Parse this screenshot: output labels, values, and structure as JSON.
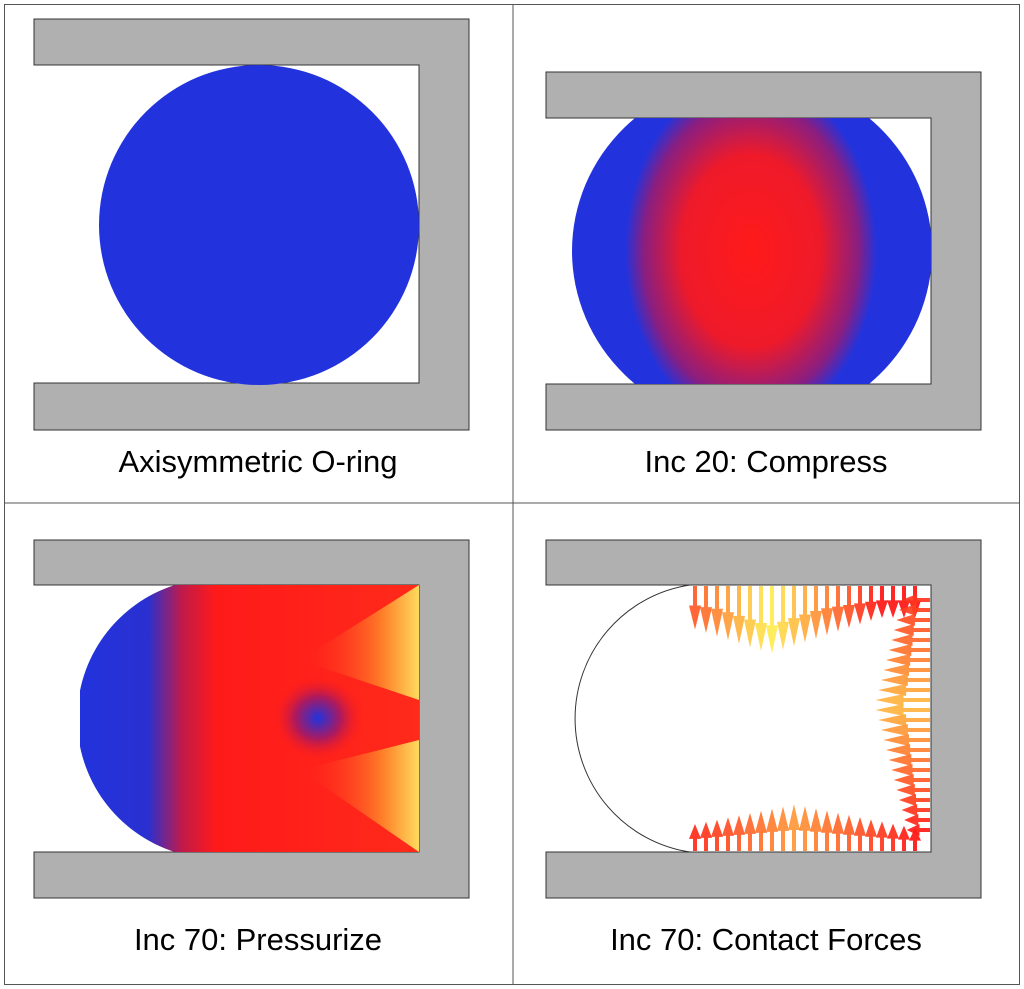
{
  "panels": [
    {
      "caption": "Axisymmetric O-ring",
      "state": "undeformed"
    },
    {
      "caption": "Inc 20: Compress",
      "state": "compressed"
    },
    {
      "caption": "Inc 70: Pressurize",
      "state": "pressurized"
    },
    {
      "caption": "Inc 70: Contact Forces",
      "state": "contact-force-vectors"
    }
  ],
  "colors": {
    "gland": "#b0b0b0",
    "low_stress": "#2233dd",
    "high_stress": "#ff1a1a",
    "peak_stress": "#ffee55",
    "border": "#555555"
  }
}
